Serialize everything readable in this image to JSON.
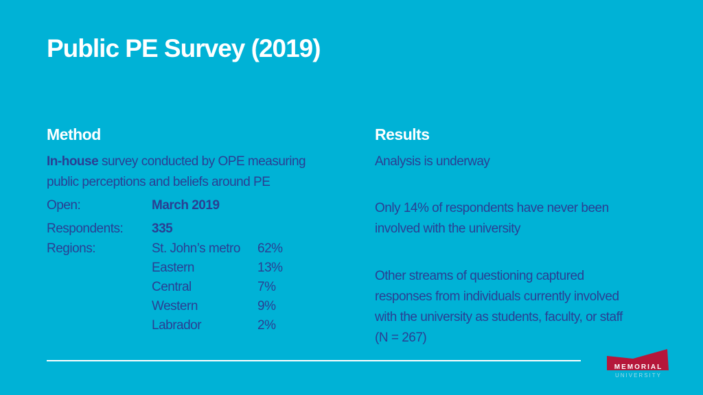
{
  "title": "Public PE Survey (2019)",
  "method": {
    "heading": "Method",
    "intro_bold": "In-house",
    "intro_line1": " survey conducted by OPE measuring",
    "intro_line2": "public perceptions and beliefs around PE",
    "open_label": "Open:",
    "open_value": "March 2019",
    "respondents_label": "Respondents:",
    "respondents_value": "335",
    "regions_label": "Regions:",
    "regions": [
      {
        "name": "St. John’s metro",
        "pct": "62%"
      },
      {
        "name": "Eastern",
        "pct": "13%"
      },
      {
        "name": "Central",
        "pct": "7%"
      },
      {
        "name": "Western",
        "pct": "9%"
      },
      {
        "name": "Labrador",
        "pct": "2%"
      }
    ]
  },
  "results": {
    "heading": "Results",
    "p1": "Analysis is underway",
    "p2_line1": "Only 14% of respondents have never been",
    "p2_line2": "involved with the university",
    "p3_line1": "Other streams of questioning captured",
    "p3_line2": "responses from individuals currently involved",
    "p3_line3": "with the university as students, faculty, or staff",
    "p3_line4": "(N = 267)"
  },
  "logo": {
    "text": "MEMORIAL",
    "subtext": "UNIVERSITY",
    "color": "#b5173a"
  },
  "colors": {
    "background": "#00b2d6",
    "heading": "#ffffff",
    "body_text": "#2a3f93"
  }
}
